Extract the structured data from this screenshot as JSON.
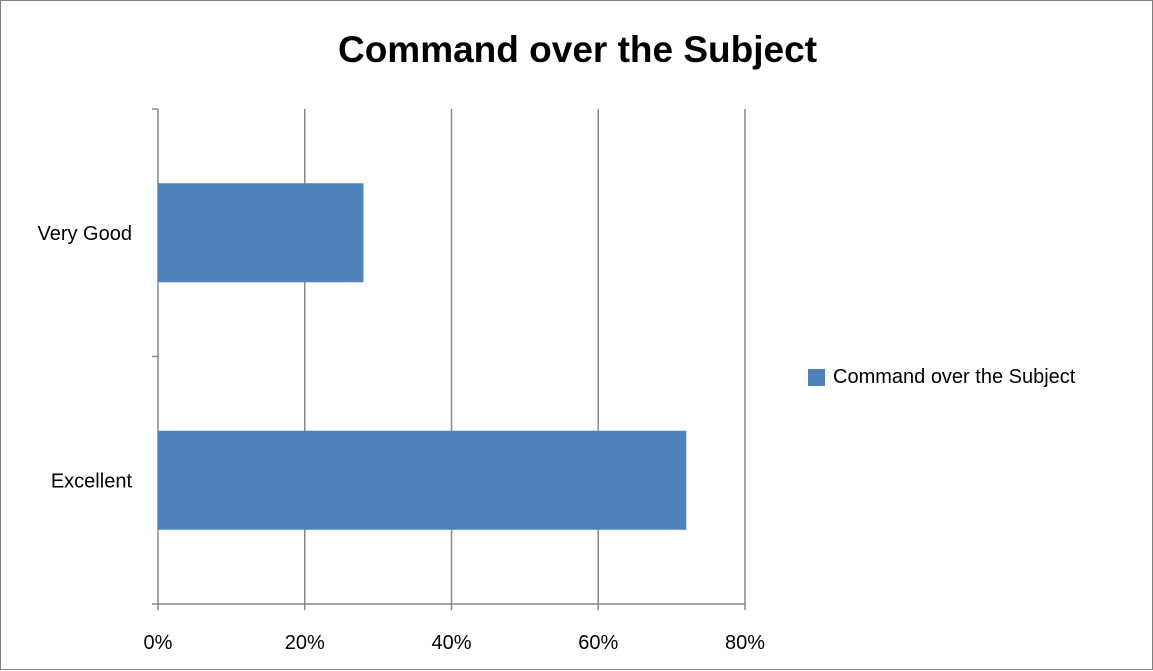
{
  "chart_data": {
    "type": "bar",
    "orientation": "horizontal",
    "title": "Command over the Subject",
    "categories": [
      "Very Good",
      "Excellent"
    ],
    "series": [
      {
        "name": "Command over the Subject",
        "values": [
          28,
          72
        ],
        "color": "#4f81bd"
      }
    ],
    "xlim": [
      0,
      80
    ],
    "x_ticks": [
      "0%",
      "20%",
      "40%",
      "60%",
      "80%"
    ],
    "x_tick_values": [
      0,
      20,
      40,
      60,
      80
    ],
    "x_unit": "%",
    "grid": "vertical",
    "legend_position": "right"
  }
}
